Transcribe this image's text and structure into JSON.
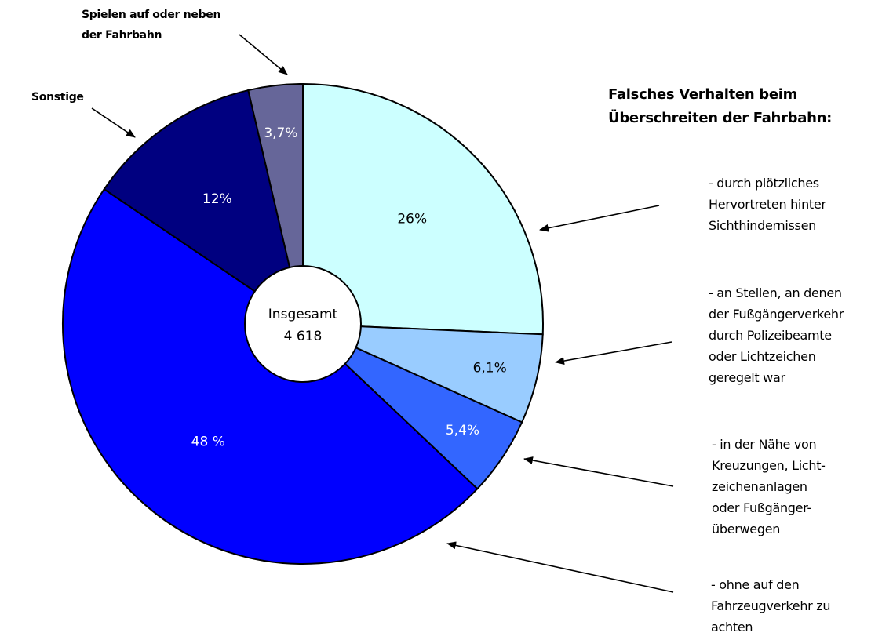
{
  "chart_data": {
    "type": "pie",
    "legend_title": "Falsches Verhalten beim\nÜberschreiten der Fahrbahn:",
    "categories": [
      "- durch plötzliches\nHervortreten hinter\nSichthindernissen",
      "- an Stellen, an denen\nder Fußgängerverkehr\ndurch Polizeibeamte\noder Lichtzeichen\ngeregelt war",
      "- in der Nähe von\nKreuzungen, Licht-\nzeichenanlagen\noder  Fußgänger-\nüberwegen",
      "- ohne auf den\nFahrzeugverkehr zu\nachten",
      "Sonstige",
      "Spielen auf oder neben\nder Fahrbahn"
    ],
    "values": [
      26,
      6.1,
      5.4,
      48,
      12,
      3.7
    ],
    "value_labels": [
      "26%",
      "6,1%",
      "5,4%",
      "48 %",
      "12%",
      "3,7%"
    ],
    "colors": [
      "#ccffff",
      "#99ccff",
      "#3366ff",
      "#0000ff",
      "#000080",
      "#666699"
    ],
    "center_label": "Insgesamt",
    "total": {
      "value": 4618,
      "label": "4 618"
    }
  }
}
